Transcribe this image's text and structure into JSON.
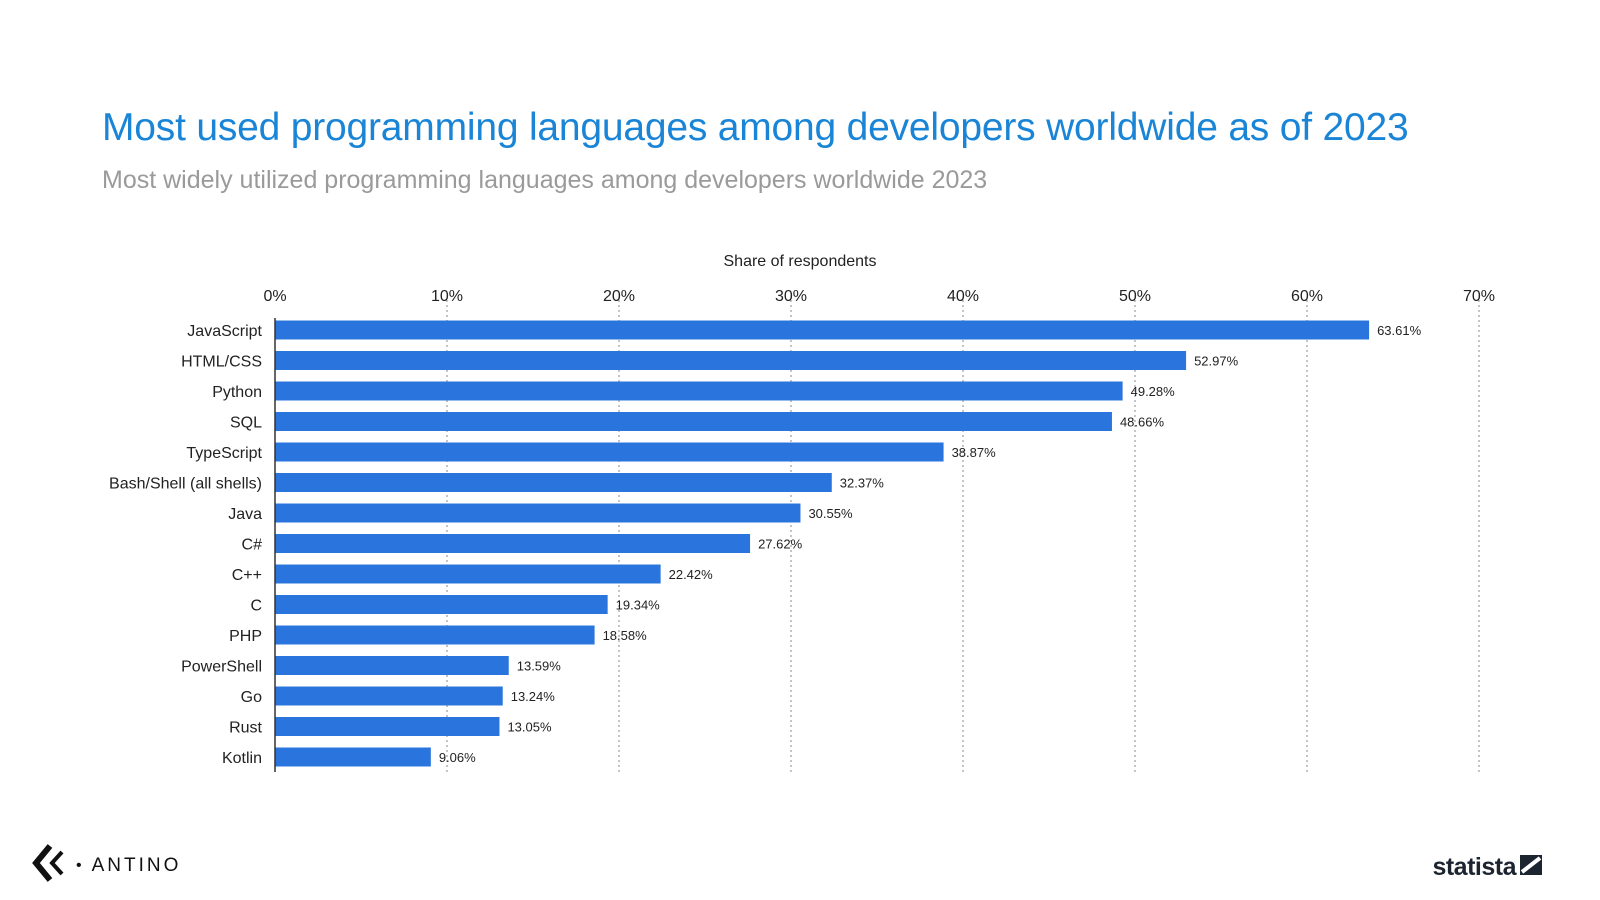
{
  "header": {
    "title": "Most used programming languages among developers worldwide as of 2023",
    "subtitle": "Most widely utilized programming languages among developers worldwide 2023"
  },
  "chart_data": {
    "type": "bar",
    "orientation": "horizontal",
    "xlabel": "Share of respondents",
    "xlim": [
      0,
      70
    ],
    "xticks": [
      "0%",
      "10%",
      "20%",
      "30%",
      "40%",
      "50%",
      "60%",
      "70%"
    ],
    "grid": "vertical dotted",
    "bar_color": "#2a74dd",
    "categories": [
      "JavaScript",
      "HTML/CSS",
      "Python",
      "SQL",
      "TypeScript",
      "Bash/Shell (all shells)",
      "Java",
      "C#",
      "C++",
      "C",
      "PHP",
      "PowerShell",
      "Go",
      "Rust",
      "Kotlin"
    ],
    "values": [
      63.61,
      52.97,
      49.28,
      48.66,
      38.87,
      32.37,
      30.55,
      27.62,
      22.42,
      19.34,
      18.58,
      13.59,
      13.24,
      13.05,
      9.06
    ],
    "data_labels": [
      "63.61%",
      "52.97%",
      "49.28%",
      "48.66%",
      "38.87%",
      "32.37%",
      "30.55%",
      "27.62%",
      "22.42%",
      "19.34%",
      "18.58%",
      "13.59%",
      "13.24%",
      "13.05%",
      "9.06%"
    ]
  },
  "branding": {
    "left_text": "ANTINO",
    "left_separator": "•",
    "left_icon": "antino-logo-icon",
    "right_text": "statista",
    "right_icon": "statista-logo-icon"
  }
}
